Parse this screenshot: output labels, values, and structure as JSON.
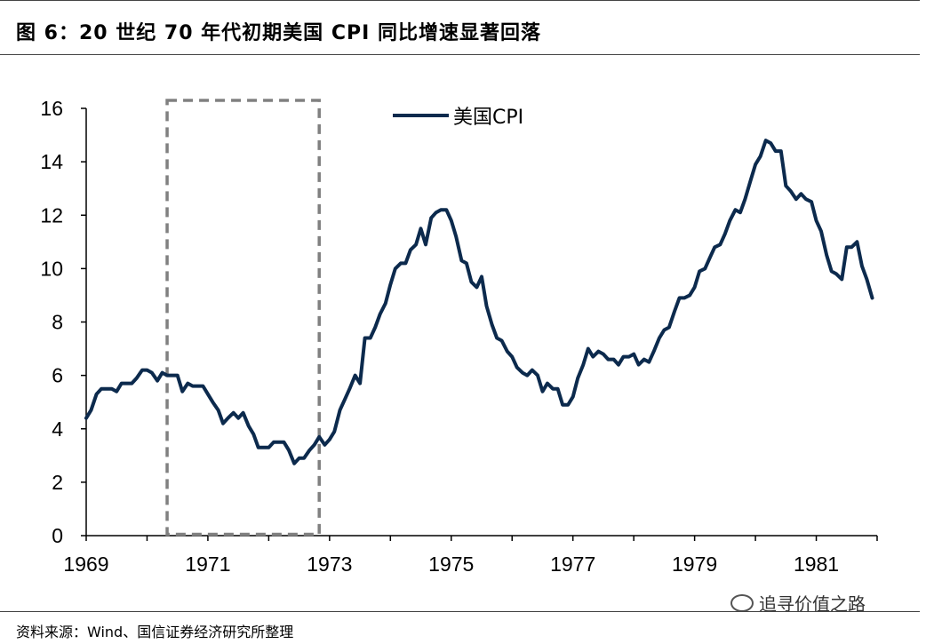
{
  "header": {
    "title": "图 6：20 世纪 70 年代初期美国 CPI 同比增速显著回落"
  },
  "footer": {
    "source": "资料来源：Wind、国信证券经济研究所整理",
    "watermark": "追寻价值之路"
  },
  "colors": {
    "series": "#0c2a4d",
    "highlight_box": "#808080",
    "axis": "#000000"
  },
  "chart_data": {
    "type": "line",
    "title": "",
    "xlabel": "",
    "ylabel": "",
    "ylim": [
      0,
      16
    ],
    "xlim": [
      1969.0,
      1982.0
    ],
    "y_ticks": [
      "0",
      "2",
      "4",
      "6",
      "8",
      "10",
      "12",
      "14",
      "16"
    ],
    "x_ticks": [
      "1969",
      "1971",
      "1973",
      "1975",
      "1977",
      "1979",
      "1981"
    ],
    "legend": "top-center",
    "grid": false,
    "highlight_range": [
      1970.33,
      1972.83
    ],
    "series": [
      {
        "name": "美国CPI",
        "x": [
          1969.0,
          1969.08,
          1969.17,
          1969.25,
          1969.33,
          1969.42,
          1969.5,
          1969.58,
          1969.67,
          1969.75,
          1969.83,
          1969.92,
          1970.0,
          1970.08,
          1970.17,
          1970.25,
          1970.33,
          1970.42,
          1970.5,
          1970.58,
          1970.67,
          1970.75,
          1970.83,
          1970.92,
          1971.0,
          1971.08,
          1971.17,
          1971.25,
          1971.33,
          1971.42,
          1971.5,
          1971.58,
          1971.67,
          1971.75,
          1971.83,
          1971.92,
          1972.0,
          1972.08,
          1972.17,
          1972.25,
          1972.33,
          1972.42,
          1972.5,
          1972.58,
          1972.67,
          1972.75,
          1972.83,
          1972.92,
          1973.0,
          1973.08,
          1973.17,
          1973.25,
          1973.33,
          1973.42,
          1973.5,
          1973.58,
          1973.67,
          1973.75,
          1973.83,
          1973.92,
          1974.0,
          1974.08,
          1974.17,
          1974.25,
          1974.33,
          1974.42,
          1974.5,
          1974.58,
          1974.67,
          1974.75,
          1974.83,
          1974.92,
          1975.0,
          1975.08,
          1975.17,
          1975.25,
          1975.33,
          1975.42,
          1975.5,
          1975.58,
          1975.67,
          1975.75,
          1975.83,
          1975.92,
          1976.0,
          1976.08,
          1976.17,
          1976.25,
          1976.33,
          1976.42,
          1976.5,
          1976.58,
          1976.67,
          1976.75,
          1976.83,
          1976.92,
          1977.0,
          1977.08,
          1977.17,
          1977.25,
          1977.33,
          1977.42,
          1977.5,
          1977.58,
          1977.67,
          1977.75,
          1977.83,
          1977.92,
          1978.0,
          1978.08,
          1978.17,
          1978.25,
          1978.33,
          1978.42,
          1978.5,
          1978.58,
          1978.67,
          1978.75,
          1978.83,
          1978.92,
          1979.0,
          1979.08,
          1979.17,
          1979.25,
          1979.33,
          1979.42,
          1979.5,
          1979.58,
          1979.67,
          1979.75,
          1979.83,
          1979.92,
          1980.0,
          1980.08,
          1980.17,
          1980.25,
          1980.33,
          1980.42,
          1980.5,
          1980.58,
          1980.67,
          1980.75,
          1980.83,
          1980.92,
          1981.0,
          1981.08,
          1981.17,
          1981.25,
          1981.33,
          1981.42,
          1981.5,
          1981.58,
          1981.67,
          1981.75,
          1981.83,
          1981.92
        ],
        "values": [
          4.4,
          4.7,
          5.3,
          5.5,
          5.5,
          5.5,
          5.4,
          5.7,
          5.7,
          5.7,
          5.9,
          6.2,
          6.2,
          6.1,
          5.8,
          6.1,
          6.0,
          6.0,
          6.0,
          5.4,
          5.7,
          5.6,
          5.6,
          5.6,
          5.3,
          5.0,
          4.7,
          4.2,
          4.4,
          4.6,
          4.4,
          4.6,
          4.1,
          3.8,
          3.3,
          3.3,
          3.3,
          3.5,
          3.5,
          3.5,
          3.2,
          2.7,
          2.9,
          2.9,
          3.2,
          3.4,
          3.7,
          3.4,
          3.6,
          3.9,
          4.7,
          5.1,
          5.5,
          6.0,
          5.7,
          7.4,
          7.4,
          7.8,
          8.3,
          8.7,
          9.4,
          10.0,
          10.2,
          10.2,
          10.7,
          10.9,
          11.5,
          10.9,
          11.9,
          12.1,
          12.2,
          12.2,
          11.8,
          11.2,
          10.3,
          10.2,
          9.5,
          9.3,
          9.7,
          8.6,
          7.9,
          7.4,
          7.3,
          6.9,
          6.7,
          6.3,
          6.1,
          6.0,
          6.2,
          6.0,
          5.4,
          5.7,
          5.5,
          5.5,
          4.9,
          4.9,
          5.2,
          5.9,
          6.4,
          7.0,
          6.7,
          6.9,
          6.8,
          6.6,
          6.6,
          6.4,
          6.7,
          6.7,
          6.8,
          6.4,
          6.6,
          6.5,
          6.9,
          7.4,
          7.7,
          7.8,
          8.4,
          8.9,
          8.9,
          9.0,
          9.3,
          9.9,
          10.0,
          10.4,
          10.8,
          10.9,
          11.3,
          11.8,
          12.2,
          12.1,
          12.6,
          13.3,
          13.9,
          14.2,
          14.8,
          14.7,
          14.4,
          14.4,
          13.1,
          12.9,
          12.6,
          12.8,
          12.6,
          12.5,
          11.8,
          11.4,
          10.5,
          9.9,
          9.8,
          9.6,
          10.8,
          10.8,
          11.0,
          10.1,
          9.6,
          8.9
        ]
      }
    ]
  }
}
